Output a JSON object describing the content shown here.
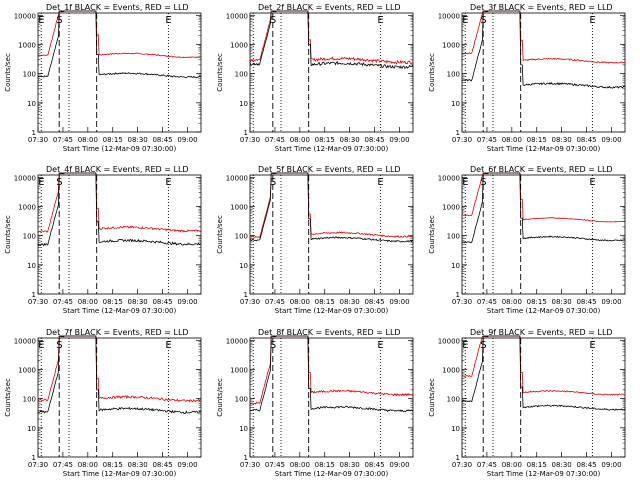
{
  "figure": {
    "y_axis_label": "Counts/sec",
    "x_axis_label": "Start Time (12-Mar-09 07:30:00)"
  },
  "chart_data": [
    {
      "type": "line",
      "title": "Det_1f BLACK = Events, RED = LLD",
      "xlabel": "Start Time (12-Mar-09 07:30:00)",
      "ylabel": "Counts/sec",
      "log_y": true,
      "x_ticks": [
        "07:30",
        "07:45",
        "08:00",
        "08:15",
        "08:30",
        "08:45",
        "09:00"
      ],
      "y_ticks": [
        "1",
        "10",
        "100",
        "1000",
        "10000"
      ],
      "xlim": [
        0,
        100
      ],
      "ylim": [
        1,
        12000
      ],
      "markers": [
        {
          "label": "E",
          "x": 2,
          "style": "dotted"
        },
        {
          "label": "S",
          "x": 13,
          "style": "dashed"
        },
        {
          "label": "",
          "x": 19,
          "style": "dotted"
        },
        {
          "label": "",
          "x": 36,
          "style": "dashed"
        },
        {
          "label": "E",
          "x": 80,
          "style": "dotted"
        }
      ],
      "series": [
        {
          "name": "LLD",
          "color": "#e00000",
          "base": 430,
          "pre": 430,
          "peak": true,
          "wiggle": 0.04,
          "post_start": 36
        },
        {
          "name": "Events",
          "color": "#000000",
          "base": 90,
          "pre": 80,
          "peak": true,
          "wiggle": 0.06,
          "post_start": 36
        }
      ]
    },
    {
      "type": "line",
      "title": "Det_2f BLACK = Events, RED = LLD",
      "xlabel": "Start Time (12-Mar-09 07:30:00)",
      "ylabel": "Counts/sec",
      "log_y": true,
      "x_ticks": [
        "07:30",
        "07:45",
        "08:00",
        "08:15",
        "08:30",
        "08:45",
        "09:00"
      ],
      "y_ticks": [
        "1",
        "10",
        "100",
        "1000",
        "10000"
      ],
      "xlim": [
        0,
        100
      ],
      "ylim": [
        1,
        12000
      ],
      "markers": [
        {
          "label": "",
          "x": 2,
          "style": "dotted"
        },
        {
          "label": "S",
          "x": 14,
          "style": "dashed"
        },
        {
          "label": "",
          "x": 19,
          "style": "dotted"
        },
        {
          "label": "",
          "x": 36,
          "style": "dashed"
        },
        {
          "label": "E",
          "x": 80,
          "style": "dotted"
        }
      ],
      "series": [
        {
          "name": "LLD",
          "color": "#e00000",
          "base": 290,
          "pre": 300,
          "peak": true,
          "wiggle": 0.12,
          "post_start": 36
        },
        {
          "name": "Events",
          "color": "#000000",
          "base": 200,
          "pre": 220,
          "peak": true,
          "wiggle": 0.12,
          "post_start": 36
        }
      ]
    },
    {
      "type": "line",
      "title": "Det_3f BLACK = Events, RED = LLD",
      "xlabel": "Start Time (12-Mar-09 07:30:00)",
      "ylabel": "Counts/sec",
      "log_y": true,
      "x_ticks": [
        "07:30",
        "07:45",
        "08:00",
        "08:15",
        "08:30",
        "08:45",
        "09:00"
      ],
      "y_ticks": [
        "1",
        "10",
        "100",
        "1000",
        "10000"
      ],
      "xlim": [
        0,
        100
      ],
      "ylim": [
        1,
        12000
      ],
      "markers": [
        {
          "label": "E",
          "x": 2,
          "style": "dotted"
        },
        {
          "label": "S",
          "x": 13,
          "style": "dashed"
        },
        {
          "label": "",
          "x": 19,
          "style": "dotted"
        },
        {
          "label": "",
          "x": 36,
          "style": "dashed"
        },
        {
          "label": "E",
          "x": 80,
          "style": "dotted"
        }
      ],
      "series": [
        {
          "name": "LLD",
          "color": "#e00000",
          "base": 280,
          "pre": 500,
          "peak": true,
          "wiggle": 0.05,
          "post_start": 36
        },
        {
          "name": "Events",
          "color": "#000000",
          "base": 40,
          "pre": 60,
          "peak": true,
          "wiggle": 0.07,
          "post_start": 36
        }
      ]
    },
    {
      "type": "line",
      "title": "Det_4f BLACK = Events, RED = LLD",
      "xlabel": "Start Time (12-Mar-09 07:30:00)",
      "ylabel": "Counts/sec",
      "log_y": true,
      "x_ticks": [
        "07:30",
        "07:45",
        "08:00",
        "08:15",
        "08:30",
        "08:45",
        "09:00"
      ],
      "y_ticks": [
        "1",
        "10",
        "100",
        "1000",
        "10000"
      ],
      "xlim": [
        0,
        100
      ],
      "ylim": [
        1,
        12000
      ],
      "markers": [
        {
          "label": "E",
          "x": 2,
          "style": "dotted"
        },
        {
          "label": "S",
          "x": 13,
          "style": "dashed"
        },
        {
          "label": "",
          "x": 19,
          "style": "dotted"
        },
        {
          "label": "",
          "x": 36,
          "style": "dashed"
        },
        {
          "label": "E",
          "x": 80,
          "style": "dotted"
        }
      ],
      "series": [
        {
          "name": "LLD",
          "color": "#e00000",
          "base": 170,
          "pre": 140,
          "peak": true,
          "wiggle": 0.08,
          "post_start": 36
        },
        {
          "name": "Events",
          "color": "#000000",
          "base": 60,
          "pre": 50,
          "peak": true,
          "wiggle": 0.09,
          "post_start": 36
        }
      ]
    },
    {
      "type": "line",
      "title": "Det_5f BLACK = Events, RED = LLD",
      "xlabel": "Start Time (12-Mar-09 07:30:00)",
      "ylabel": "Counts/sec",
      "log_y": true,
      "x_ticks": [
        "07:30",
        "07:45",
        "08:00",
        "08:15",
        "08:30",
        "08:45",
        "09:00"
      ],
      "y_ticks": [
        "1",
        "10",
        "100",
        "1000",
        "10000"
      ],
      "xlim": [
        0,
        100
      ],
      "ylim": [
        1,
        12000
      ],
      "markers": [
        {
          "label": "",
          "x": 2,
          "style": "dotted"
        },
        {
          "label": "S",
          "x": 14,
          "style": "dashed"
        },
        {
          "label": "",
          "x": 19,
          "style": "dotted"
        },
        {
          "label": "",
          "x": 36,
          "style": "dashed"
        },
        {
          "label": "E",
          "x": 80,
          "style": "dotted"
        }
      ],
      "series": [
        {
          "name": "LLD",
          "color": "#e00000",
          "base": 110,
          "pre": 90,
          "peak": true,
          "wiggle": 0.06,
          "post_start": 36
        },
        {
          "name": "Events",
          "color": "#000000",
          "base": 75,
          "pre": 70,
          "peak": true,
          "wiggle": 0.06,
          "post_start": 36
        }
      ]
    },
    {
      "type": "line",
      "title": "Det_6f BLACK = Events, RED = LLD",
      "xlabel": "Start Time (12-Mar-09 07:30:00)",
      "ylabel": "Counts/sec",
      "log_y": true,
      "x_ticks": [
        "07:30",
        "07:45",
        "08:00",
        "08:15",
        "08:30",
        "08:45",
        "09:00"
      ],
      "y_ticks": [
        "1",
        "10",
        "100",
        "1000",
        "10000"
      ],
      "xlim": [
        0,
        100
      ],
      "ylim": [
        1,
        12000
      ],
      "markers": [
        {
          "label": "E",
          "x": 2,
          "style": "dotted"
        },
        {
          "label": "S",
          "x": 13,
          "style": "dashed"
        },
        {
          "label": "",
          "x": 19,
          "style": "dotted"
        },
        {
          "label": "",
          "x": 36,
          "style": "dashed"
        },
        {
          "label": "E",
          "x": 80,
          "style": "dotted"
        }
      ],
      "series": [
        {
          "name": "LLD",
          "color": "#e00000",
          "base": 350,
          "pre": 500,
          "peak": true,
          "wiggle": 0.03,
          "post_start": 36
        },
        {
          "name": "Events",
          "color": "#000000",
          "base": 80,
          "pre": 60,
          "peak": true,
          "wiggle": 0.05,
          "post_start": 36
        }
      ]
    },
    {
      "type": "line",
      "title": "Det_7f BLACK = Events, RED = LLD",
      "xlabel": "Start Time (12-Mar-09 07:30:00)",
      "ylabel": "Counts/sec",
      "log_y": true,
      "x_ticks": [
        "07:30",
        "07:45",
        "08:00",
        "08:15",
        "08:30",
        "08:45",
        "09:00"
      ],
      "y_ticks": [
        "1",
        "10",
        "100",
        "1000",
        "10000"
      ],
      "xlim": [
        0,
        100
      ],
      "ylim": [
        1,
        12000
      ],
      "markers": [
        {
          "label": "E",
          "x": 2,
          "style": "dotted"
        },
        {
          "label": "S",
          "x": 13,
          "style": "dashed"
        },
        {
          "label": "",
          "x": 19,
          "style": "dotted"
        },
        {
          "label": "",
          "x": 36,
          "style": "dashed"
        },
        {
          "label": "E",
          "x": 80,
          "style": "dotted"
        }
      ],
      "series": [
        {
          "name": "LLD",
          "color": "#e00000",
          "base": 100,
          "pre": 90,
          "peak": true,
          "wiggle": 0.09,
          "post_start": 36
        },
        {
          "name": "Events",
          "color": "#000000",
          "base": 40,
          "pre": 35,
          "peak": true,
          "wiggle": 0.09,
          "post_start": 36
        }
      ]
    },
    {
      "type": "line",
      "title": "Det_8f BLACK = Events, RED = LLD",
      "xlabel": "Start Time (12-Mar-09 07:30:00)",
      "ylabel": "Counts/sec",
      "log_y": true,
      "x_ticks": [
        "07:30",
        "07:45",
        "08:00",
        "08:15",
        "08:30",
        "08:45",
        "09:00"
      ],
      "y_ticks": [
        "1",
        "10",
        "100",
        "1000",
        "10000"
      ],
      "xlim": [
        0,
        100
      ],
      "ylim": [
        1,
        12000
      ],
      "markers": [
        {
          "label": "",
          "x": 2,
          "style": "dotted"
        },
        {
          "label": "S",
          "x": 14,
          "style": "dashed"
        },
        {
          "label": "",
          "x": 19,
          "style": "dotted"
        },
        {
          "label": "",
          "x": 36,
          "style": "dashed"
        },
        {
          "label": "E",
          "x": 80,
          "style": "dotted"
        }
      ],
      "series": [
        {
          "name": "LLD",
          "color": "#e00000",
          "base": 160,
          "pre": 70,
          "peak": true,
          "wiggle": 0.08,
          "post_start": 36
        },
        {
          "name": "Events",
          "color": "#000000",
          "base": 45,
          "pre": 40,
          "peak": true,
          "wiggle": 0.08,
          "post_start": 36
        }
      ]
    },
    {
      "type": "line",
      "title": "Det_9f BLACK = Events, RED = LLD",
      "xlabel": "Start Time (12-Mar-09 07:30:00)",
      "ylabel": "Counts/sec",
      "log_y": true,
      "x_ticks": [
        "07:30",
        "07:45",
        "08:00",
        "08:15",
        "08:30",
        "08:45",
        "09:00"
      ],
      "y_ticks": [
        "1",
        "10",
        "100",
        "1000",
        "10000"
      ],
      "xlim": [
        0,
        100
      ],
      "ylim": [
        1,
        12000
      ],
      "markers": [
        {
          "label": "E",
          "x": 2,
          "style": "dotted"
        },
        {
          "label": "S",
          "x": 13,
          "style": "dashed"
        },
        {
          "label": "",
          "x": 19,
          "style": "dotted"
        },
        {
          "label": "",
          "x": 36,
          "style": "dashed"
        },
        {
          "label": "E",
          "x": 80,
          "style": "dotted"
        }
      ],
      "series": [
        {
          "name": "LLD",
          "color": "#e00000",
          "base": 160,
          "pre": 600,
          "peak": true,
          "wiggle": 0.05,
          "post_start": 36
        },
        {
          "name": "Events",
          "color": "#000000",
          "base": 50,
          "pre": 80,
          "peak": true,
          "wiggle": 0.06,
          "post_start": 36
        }
      ]
    }
  ]
}
